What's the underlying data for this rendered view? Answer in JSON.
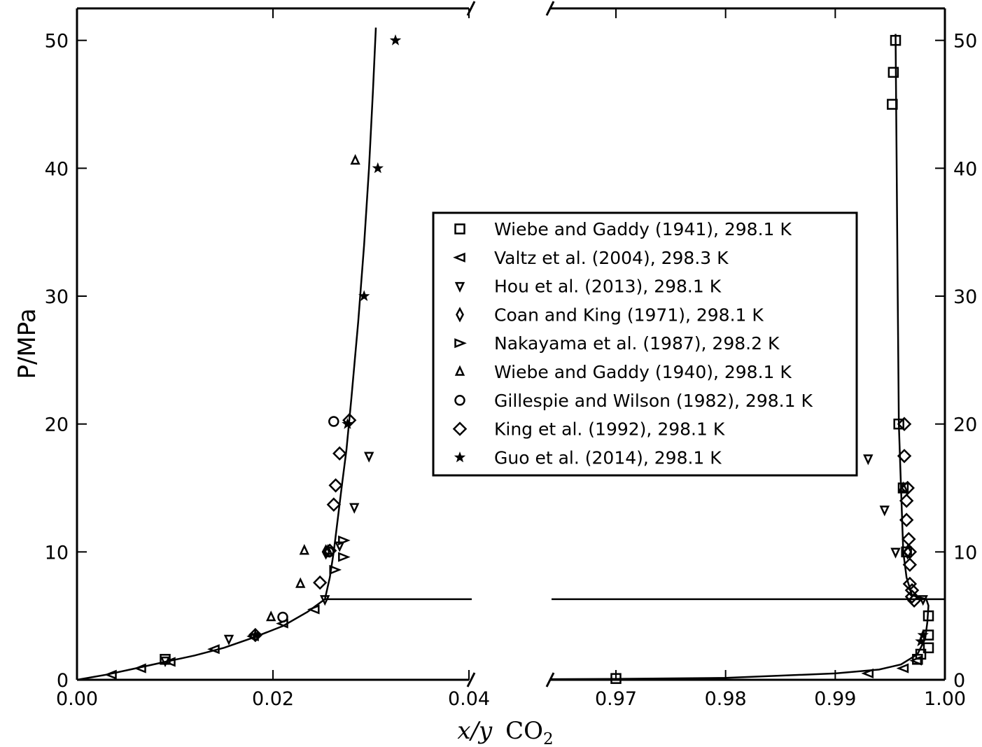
{
  "chart_data": {
    "type": "scatter",
    "ylabel": "P/MPa",
    "xlabel": {
      "var": "x/y",
      "species": "CO",
      "subscript": "2"
    },
    "ylim": [
      0,
      52.5
    ],
    "left_panel": {
      "xlim": [
        0.0,
        0.04
      ],
      "xticks": [
        0.0,
        0.02,
        0.04
      ],
      "xtick_labels": [
        "0.00",
        "0.02",
        "0.04"
      ]
    },
    "right_panel": {
      "xlim": [
        0.964,
        1.0
      ],
      "xticks": [
        0.97,
        0.98,
        0.99,
        1.0
      ],
      "xtick_labels": [
        "0.97",
        "0.98",
        "0.99",
        "1.00"
      ]
    },
    "yticks": [
      0,
      10,
      20,
      30,
      40,
      50
    ],
    "ytick_labels": [
      "0",
      "10",
      "20",
      "30",
      "40",
      "50"
    ],
    "grid": false,
    "legend_position": "center-right",
    "three_phase_pressure": 6.3,
    "model_curve": {
      "liquid": [
        [
          0.0,
          0.0
        ],
        [
          0.003,
          0.4
        ],
        [
          0.006,
          0.9
        ],
        [
          0.009,
          1.4
        ],
        [
          0.012,
          1.9
        ],
        [
          0.015,
          2.5
        ],
        [
          0.018,
          3.3
        ],
        [
          0.021,
          4.2
        ],
        [
          0.0235,
          5.3
        ],
        [
          0.0253,
          6.3
        ],
        [
          0.0258,
          8.0
        ],
        [
          0.0262,
          10.0
        ],
        [
          0.0266,
          12.5
        ],
        [
          0.027,
          15.0
        ],
        [
          0.0275,
          18.0
        ],
        [
          0.028,
          22.0
        ],
        [
          0.0287,
          28.0
        ],
        [
          0.0293,
          34.0
        ],
        [
          0.0298,
          40.0
        ],
        [
          0.0302,
          46.0
        ],
        [
          0.0305,
          51.0
        ]
      ],
      "vapor": [
        [
          0.964,
          0.05
        ],
        [
          0.97,
          0.07
        ],
        [
          0.98,
          0.15
        ],
        [
          0.99,
          0.5
        ],
        [
          0.994,
          0.8
        ],
        [
          0.996,
          1.2
        ],
        [
          0.9975,
          2.0
        ],
        [
          0.9982,
          3.2
        ],
        [
          0.9984,
          4.5
        ],
        [
          0.9985,
          5.8
        ],
        [
          0.9983,
          6.3
        ],
        [
          0.997,
          6.6
        ],
        [
          0.9965,
          8.0
        ],
        [
          0.9962,
          10.0
        ],
        [
          0.996,
          15.0
        ],
        [
          0.9958,
          20.0
        ],
        [
          0.9957,
          30.0
        ],
        [
          0.9956,
          40.0
        ],
        [
          0.9955,
          50.5
        ]
      ]
    },
    "series": [
      {
        "name": "Wiebe and Gaddy (1941), 298.1 K",
        "marker": "square",
        "points": [
          [
            0.97,
            0.1
          ],
          [
            0.9955,
            50.0
          ],
          [
            0.9953,
            47.5
          ],
          [
            0.9952,
            45.0
          ],
          [
            0.9958,
            20.0
          ],
          [
            0.9962,
            15.0
          ],
          [
            0.9965,
            10.0
          ],
          [
            0.9985,
            5.0
          ],
          [
            0.9985,
            3.5
          ],
          [
            0.9985,
            2.5
          ],
          [
            0.9978,
            2.0
          ],
          [
            0.9975,
            1.6
          ],
          [
            0.009,
            1.6
          ]
        ]
      },
      {
        "name": "Valtz et al. (2004), 298.3 K",
        "marker": "triangle-left",
        "points": [
          [
            0.0035,
            0.4
          ],
          [
            0.0065,
            0.9
          ],
          [
            0.0095,
            1.4
          ],
          [
            0.014,
            2.4
          ],
          [
            0.018,
            3.4
          ],
          [
            0.021,
            4.4
          ],
          [
            0.0242,
            5.5
          ],
          [
            0.993,
            0.5
          ],
          [
            0.9962,
            0.9
          ],
          [
            0.9974,
            1.5
          ]
        ]
      },
      {
        "name": "Hou et al. (2013), 298.1 K",
        "marker": "triangle-down",
        "points": [
          [
            0.0155,
            3.2
          ],
          [
            0.0253,
            6.3
          ],
          [
            0.0268,
            10.5
          ],
          [
            0.0283,
            13.5
          ],
          [
            0.0298,
            17.5
          ],
          [
            0.993,
            17.3
          ],
          [
            0.9945,
            13.3
          ],
          [
            0.9955,
            10.0
          ],
          [
            0.998,
            6.3
          ],
          [
            0.009,
            1.5
          ]
        ]
      },
      {
        "name": "Coan and King (1971), 298.1 K",
        "marker": "thin-diamond",
        "points": [
          [
            0.0254,
            10.0
          ],
          [
            0.9966,
            10.0
          ]
        ]
      },
      {
        "name": "Nakayama et al. (1987), 298.2 K",
        "marker": "triangle-right",
        "points": [
          [
            0.0263,
            8.6
          ],
          [
            0.0272,
            9.6
          ],
          [
            0.0272,
            10.9
          ]
        ]
      },
      {
        "name": "Wiebe and Gaddy (1940), 298.1 K",
        "marker": "triangle-up",
        "points": [
          [
            0.0198,
            4.9
          ],
          [
            0.0228,
            7.5
          ],
          [
            0.0232,
            10.1
          ],
          [
            0.0284,
            40.6
          ],
          [
            0.0256,
            10.1
          ],
          [
            0.9962,
            15.0
          ]
        ]
      },
      {
        "name": "Gillespie and Wilson (1982), 298.1 K",
        "marker": "circle",
        "points": [
          [
            0.021,
            4.9
          ],
          [
            0.0257,
            10.0
          ],
          [
            0.0262,
            20.2
          ]
        ]
      },
      {
        "name": "King et al. (1992), 298.1 K",
        "marker": "diamond",
        "points": [
          [
            0.0182,
            3.5
          ],
          [
            0.0248,
            7.6
          ],
          [
            0.0258,
            10.1
          ],
          [
            0.0262,
            13.7
          ],
          [
            0.0264,
            15.2
          ],
          [
            0.0268,
            17.7
          ],
          [
            0.0278,
            20.3
          ],
          [
            0.9963,
            20.0
          ],
          [
            0.9963,
            17.5
          ],
          [
            0.9966,
            15.0
          ],
          [
            0.9965,
            14.0
          ],
          [
            0.9965,
            12.5
          ],
          [
            0.9967,
            11.0
          ],
          [
            0.9968,
            10.0
          ],
          [
            0.9968,
            9.0
          ],
          [
            0.9968,
            7.5
          ],
          [
            0.997,
            7.0
          ],
          [
            0.997,
            6.5
          ],
          [
            0.9972,
            6.2
          ]
        ]
      },
      {
        "name": "Guo et al. (2014), 298.1 K",
        "marker": "star",
        "points": [
          [
            0.0325,
            50.0
          ],
          [
            0.0307,
            40.0
          ],
          [
            0.0293,
            30.0
          ],
          [
            0.0276,
            20.0
          ],
          [
            0.0182,
            3.5
          ],
          [
            0.9978,
            3.0
          ],
          [
            0.998,
            3.5
          ]
        ]
      }
    ]
  }
}
